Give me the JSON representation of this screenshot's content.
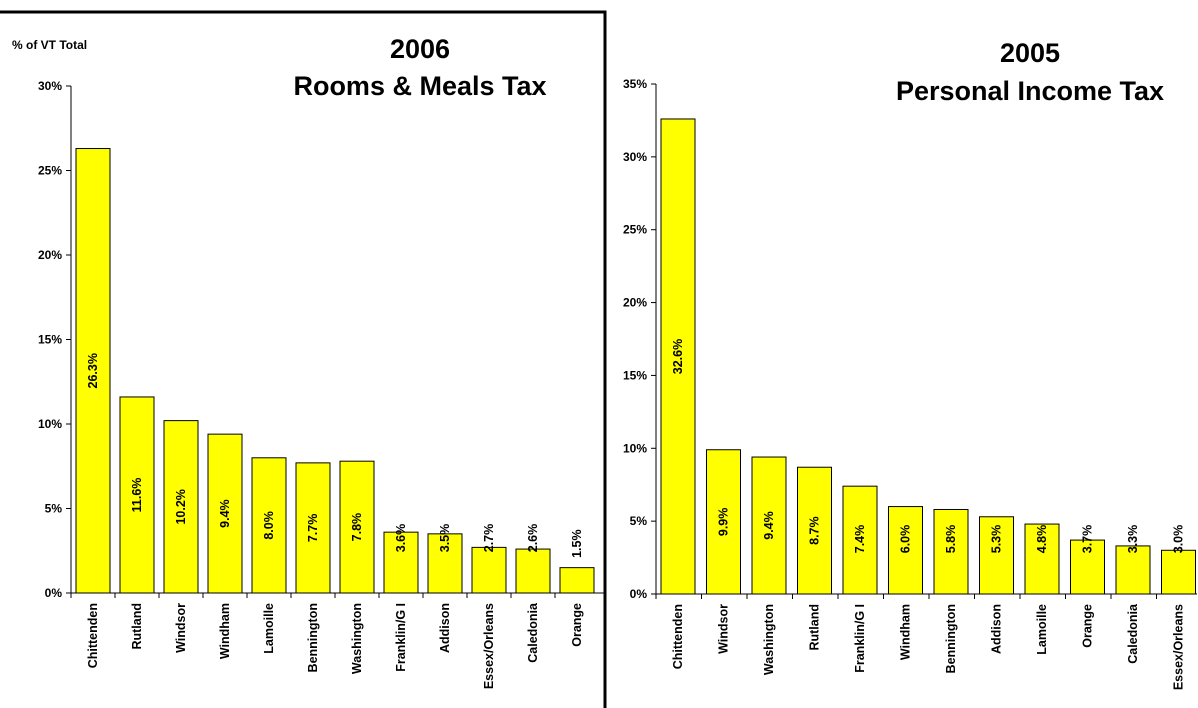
{
  "chart_data": [
    {
      "type": "bar",
      "title": [
        "2006",
        "Rooms & Meals Tax"
      ],
      "ylabel": "% of VT Total",
      "ylim": [
        0,
        30
      ],
      "yticks": [
        "0%",
        "5%",
        "10%",
        "15%",
        "20%",
        "25%",
        "30%"
      ],
      "categories": [
        "Chittenden",
        "Rutland",
        "Windsor",
        "Windham",
        "Lamoille",
        "Bennington",
        "Washington",
        "Franklin/G I",
        "Addison",
        "Essex/Orleans",
        "Caledonia",
        "Orange"
      ],
      "values": [
        26.3,
        11.6,
        10.2,
        9.4,
        8.0,
        7.7,
        7.8,
        3.6,
        3.5,
        2.7,
        2.6,
        1.5
      ],
      "value_labels": [
        "26.3%",
        "11.6%",
        "10.2%",
        "9.4%",
        "8.0%",
        "7.7%",
        "7.8%",
        "3.6%",
        "3.5%",
        "2.7%",
        "2.6%",
        "1.5%"
      ],
      "bar_color": "#ffff00",
      "grid": false
    },
    {
      "type": "bar",
      "title": [
        "2005",
        "Personal Income Tax"
      ],
      "ylabel": "",
      "ylim": [
        0,
        35
      ],
      "yticks": [
        "0%",
        "5%",
        "10%",
        "15%",
        "20%",
        "25%",
        "30%",
        "35%"
      ],
      "categories": [
        "Chittenden",
        "Windsor",
        "Washington",
        "Rutland",
        "Franklin/G I",
        "Windham",
        "Bennington",
        "Addison",
        "Lamoille",
        "Orange",
        "Caledonia",
        "Essex/Orleans"
      ],
      "values": [
        32.6,
        9.9,
        9.4,
        8.7,
        7.4,
        6.0,
        5.8,
        5.3,
        4.8,
        3.7,
        3.3,
        3.0
      ],
      "value_labels": [
        "32.6%",
        "9.9%",
        "9.4%",
        "8.7%",
        "7.4%",
        "6.0%",
        "5.8%",
        "5.3%",
        "4.8%",
        "3.7%",
        "3.3%",
        "3.0%"
      ],
      "bar_color": "#ffff00",
      "grid": false
    }
  ]
}
